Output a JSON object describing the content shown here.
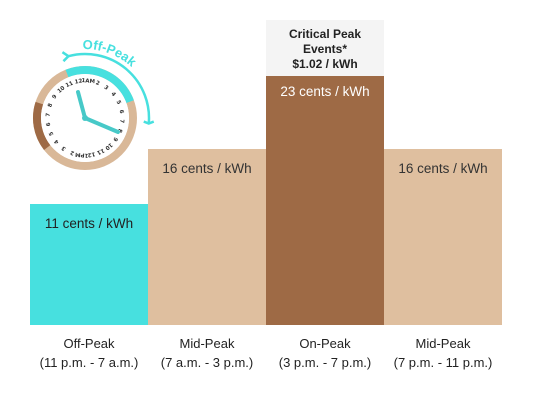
{
  "chart_data": {
    "type": "bar",
    "categories": [
      {
        "name": "Off-Peak",
        "hours": "(11 p.m. - 7 a.m.)"
      },
      {
        "name": "Mid-Peak",
        "hours": "(7 a.m. - 3 p.m.)"
      },
      {
        "name": "On-Peak",
        "hours": "(3 p.m. - 7 p.m.)"
      },
      {
        "name": "Mid-Peak",
        "hours": "(7 p.m. - 11 p.m.)"
      }
    ],
    "values": [
      11,
      16,
      23,
      16
    ],
    "value_labels": [
      "11 cents / kWh",
      "16 cents / kWh",
      "23 cents / kWh",
      "16 cents / kWh"
    ],
    "unit": "cents / kWh",
    "colors": [
      "#47e0df",
      "#dfbf9f",
      "#9e6a45",
      "#dfbf9f"
    ],
    "label_colors": [
      "#222222",
      "#333333",
      "#ffffff",
      "#333333"
    ],
    "ylim": [
      0,
      30
    ],
    "grid": false,
    "annotation": {
      "lines": [
        "Critical Peak",
        "Events*",
        "$1.02 / kWh"
      ]
    }
  },
  "clock": {
    "arc_label": "Off-Peak",
    "numbers": [
      "1AM",
      "2",
      "3",
      "4",
      "5",
      "6",
      "7",
      "8",
      "9",
      "10",
      "11",
      "12",
      "1PM",
      "2",
      "3",
      "4",
      "5",
      "6",
      "7",
      "8",
      "9",
      "10",
      "11",
      "12"
    ],
    "colors": {
      "ring": "#d9b898",
      "off_peak": "#47e0df",
      "mid_peak": "#d9b898",
      "on_peak": "#9e6a45",
      "hands": "#47c9c8"
    }
  }
}
